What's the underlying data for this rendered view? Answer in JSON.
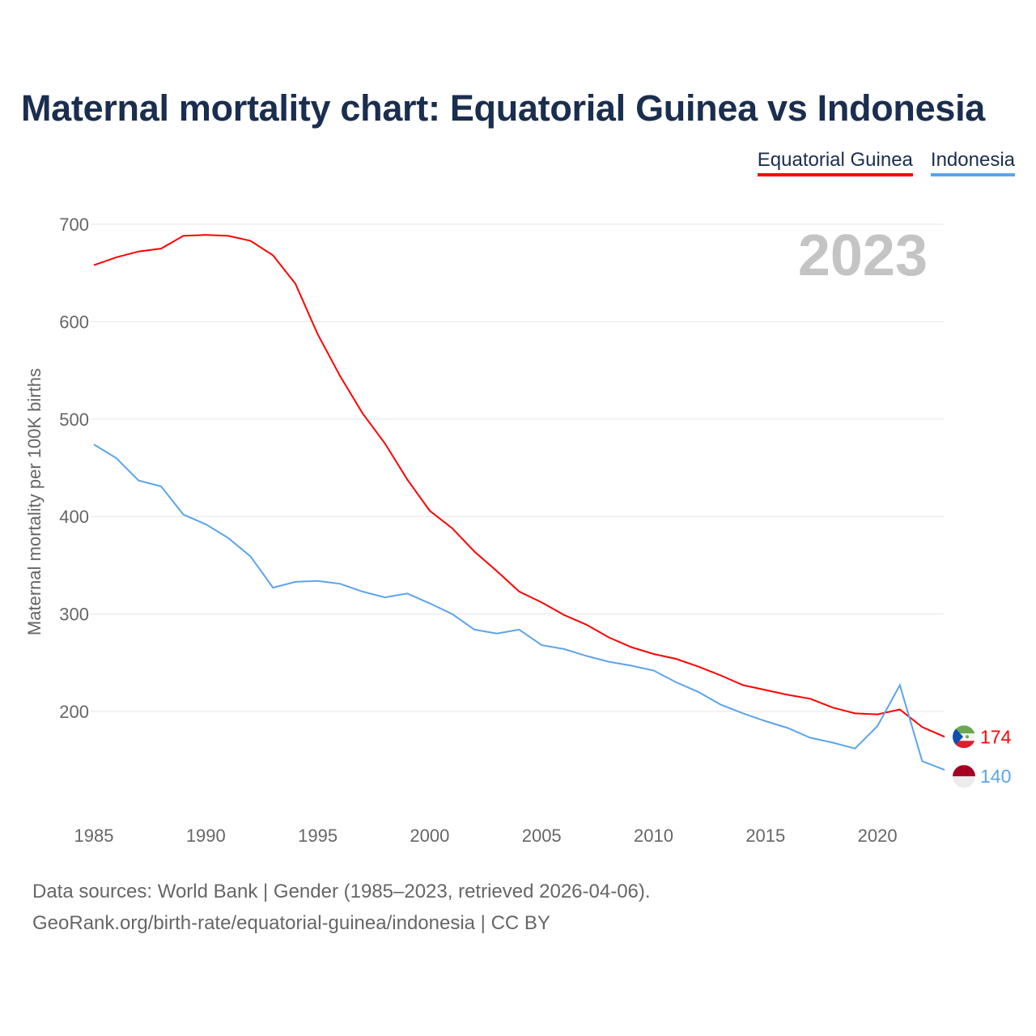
{
  "title": "Maternal mortality chart: Equatorial Guinea vs Indonesia",
  "chart_data": {
    "type": "line",
    "title": "Maternal mortality chart: Equatorial Guinea vs Indonesia",
    "xlabel": "",
    "ylabel": "Maternal mortality per 100K births",
    "ylim": [
      100,
      720
    ],
    "xlim": [
      1985,
      2023
    ],
    "yticks": [
      200,
      300,
      400,
      500,
      600,
      700
    ],
    "xticks": [
      1985,
      1990,
      1995,
      2000,
      2005,
      2010,
      2015,
      2020
    ],
    "grid": true,
    "legend_placement": "top-right",
    "year_label": "2023",
    "x": [
      1985,
      1986,
      1987,
      1988,
      1989,
      1990,
      1991,
      1992,
      1993,
      1994,
      1995,
      1996,
      1997,
      1998,
      1999,
      2000,
      2001,
      2002,
      2003,
      2004,
      2005,
      2006,
      2007,
      2008,
      2009,
      2010,
      2011,
      2012,
      2013,
      2014,
      2015,
      2016,
      2017,
      2018,
      2019,
      2020,
      2021,
      2022,
      2023
    ],
    "series": [
      {
        "name": "Equatorial Guinea",
        "color": "#ff0000",
        "end_label": "174",
        "values": [
          658,
          666,
          672,
          675,
          688,
          689,
          688,
          683,
          668,
          639,
          587,
          544,
          506,
          475,
          438,
          406,
          388,
          364,
          344,
          323,
          312,
          299,
          289,
          276,
          266,
          259,
          254,
          246,
          237,
          227,
          222,
          217,
          213,
          204,
          198,
          197,
          202,
          184,
          174
        ]
      },
      {
        "name": "Indonesia",
        "color": "#5ba4ec",
        "end_label": "140",
        "values": [
          474,
          460,
          437,
          431,
          402,
          392,
          378,
          359,
          327,
          333,
          334,
          331,
          323,
          317,
          321,
          311,
          300,
          284,
          280,
          284,
          268,
          264,
          257,
          251,
          247,
          242,
          230,
          220,
          207,
          198,
          190,
          183,
          173,
          168,
          162,
          185,
          227,
          149,
          140
        ]
      }
    ]
  },
  "footer": {
    "line1": "Data sources: World Bank | Gender (1985–2023, retrieved 2026-04-06).",
    "line2": "GeoRank.org/birth-rate/equatorial-guinea/indonesia | CC BY"
  }
}
